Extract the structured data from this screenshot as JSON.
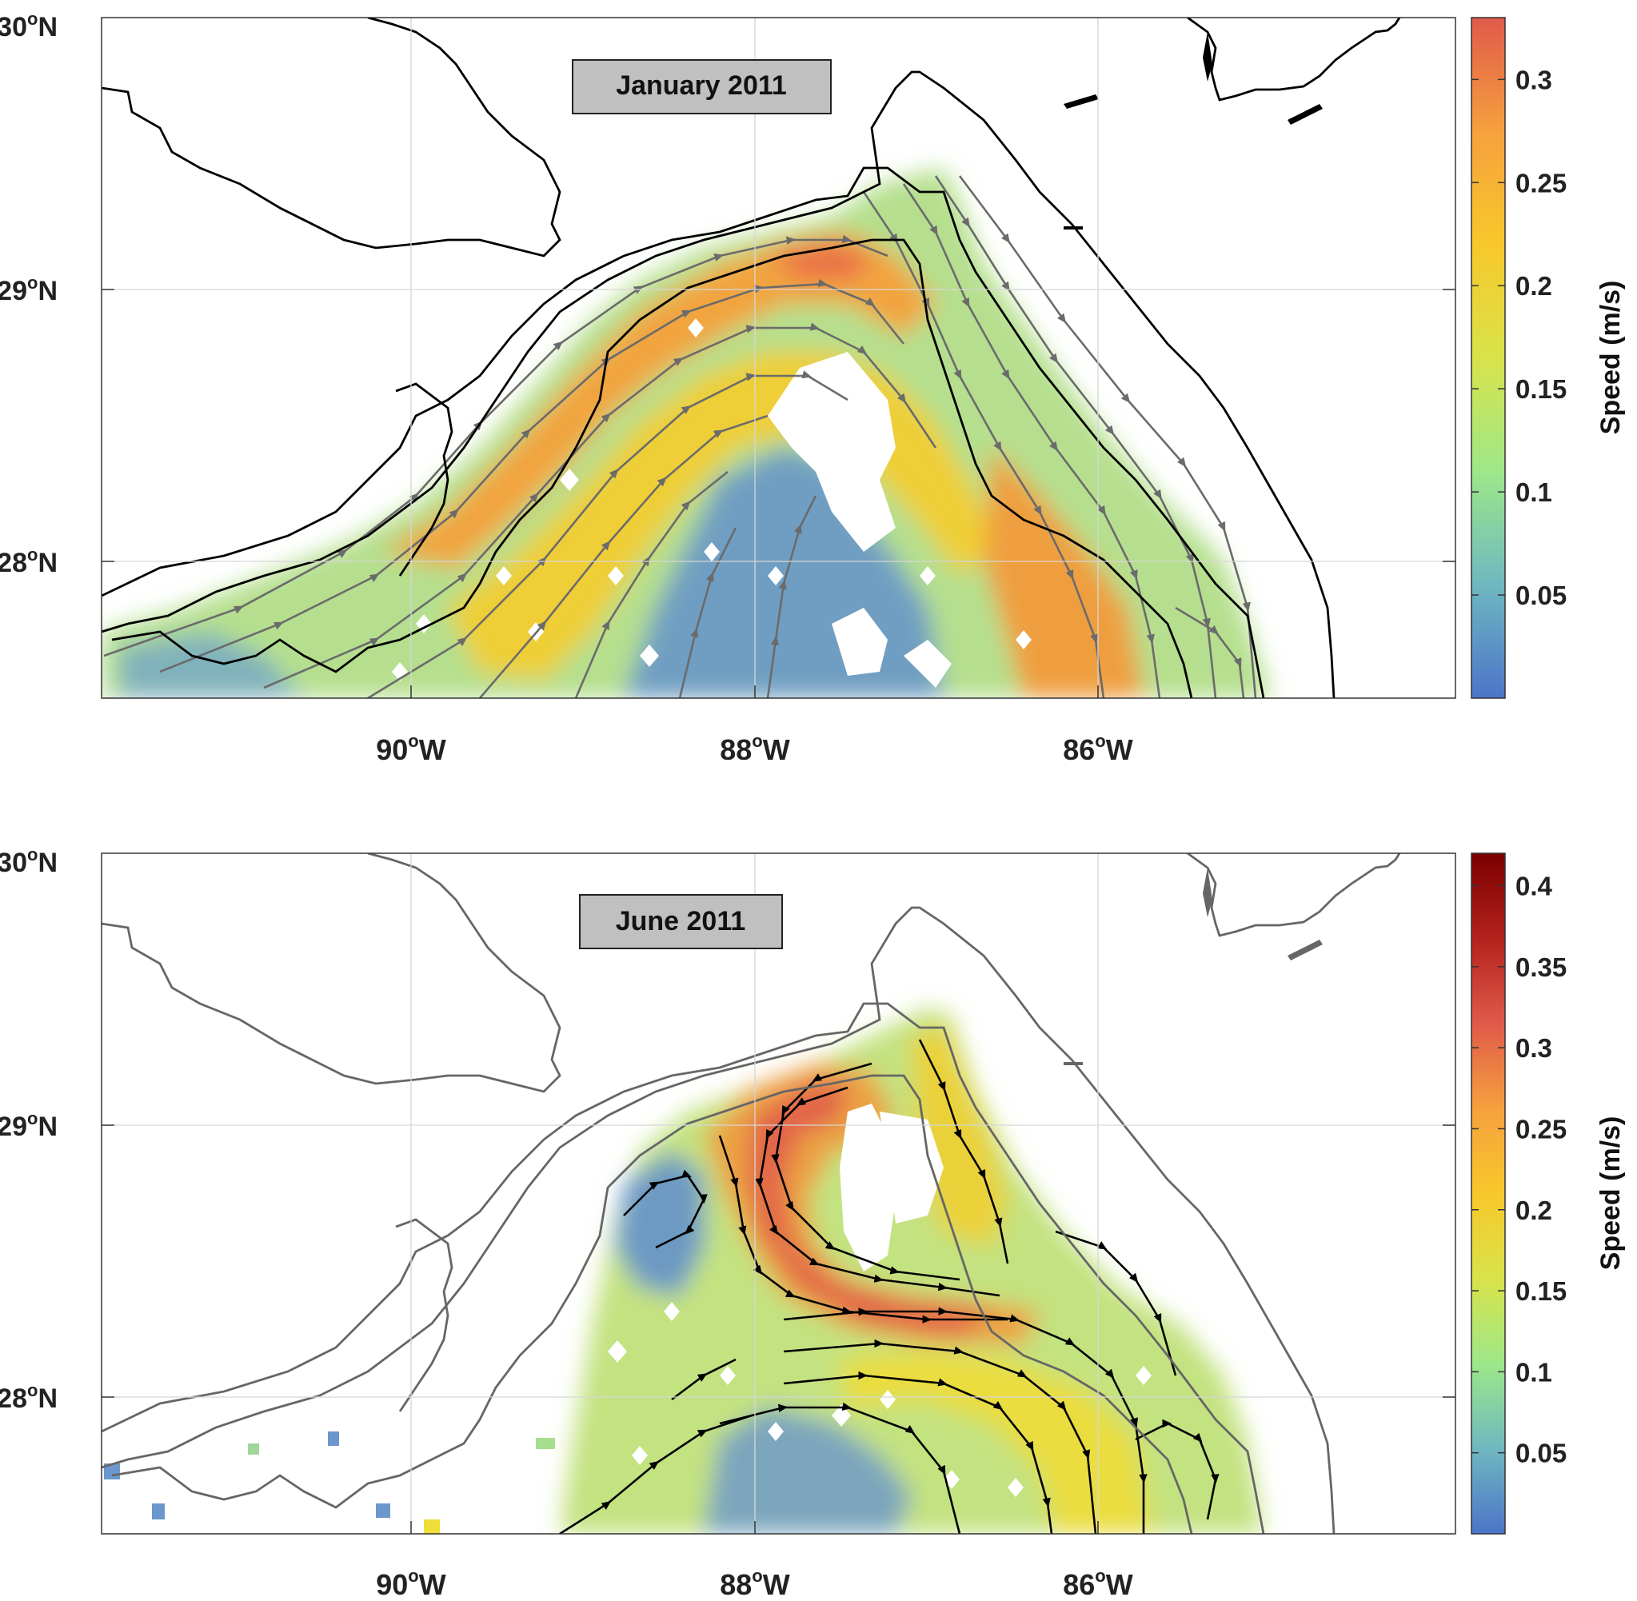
{
  "figure": {
    "panels": [
      {
        "id": "top",
        "title": "January 2011",
        "streamline_color": "#6b6b6b",
        "coast_color": "#000000",
        "y_ticks": [
          {
            "lat": 30,
            "deg": "30",
            "hemi": "N"
          },
          {
            "lat": 29,
            "deg": "29",
            "hemi": "N"
          },
          {
            "lat": 28,
            "deg": "28",
            "hemi": "N"
          }
        ],
        "x_ticks": [
          {
            "lon": -90,
            "deg": "90",
            "hemi": "W"
          },
          {
            "lon": -88,
            "deg": "88",
            "hemi": "W"
          },
          {
            "lon": -86,
            "deg": "86",
            "hemi": "W"
          }
        ],
        "colorbar": {
          "label": "Speed (m/s)",
          "min": 0.0,
          "max": 0.33,
          "ticks": [
            "0.05",
            "0.1",
            "0.15",
            "0.2",
            "0.25",
            "0.3"
          ],
          "stops": [
            "#4c74c9",
            "#6fb8c0",
            "#9de889",
            "#d9e34a",
            "#f8c82a",
            "#f6a03e",
            "#e05a4a"
          ]
        }
      },
      {
        "id": "bottom",
        "title": "June 2011",
        "streamline_color": "#000000",
        "coast_color": "#666666",
        "y_ticks": [
          {
            "lat": 30,
            "deg": "30",
            "hemi": "N"
          },
          {
            "lat": 29,
            "deg": "29",
            "hemi": "N"
          },
          {
            "lat": 28,
            "deg": "28",
            "hemi": "N"
          }
        ],
        "x_ticks": [
          {
            "lon": -90,
            "deg": "90",
            "hemi": "W"
          },
          {
            "lon": -88,
            "deg": "88",
            "hemi": "W"
          },
          {
            "lon": -86,
            "deg": "86",
            "hemi": "W"
          }
        ],
        "colorbar": {
          "label": "Speed (m/s)",
          "min": 0.0,
          "max": 0.42,
          "ticks": [
            "0.05",
            "0.1",
            "0.15",
            "0.2",
            "0.25",
            "0.3",
            "0.35",
            "0.4"
          ],
          "stops": [
            "#4c74c9",
            "#6fb8c0",
            "#9de889",
            "#d9e34a",
            "#f8c82a",
            "#f6a03e",
            "#e05a4a",
            "#b4211c",
            "#7a0000"
          ]
        }
      }
    ]
  },
  "map_extent": {
    "lon_min": -91.8,
    "lon_max": -83.9,
    "lat_min": 27.5,
    "lat_max": 30.0
  }
}
